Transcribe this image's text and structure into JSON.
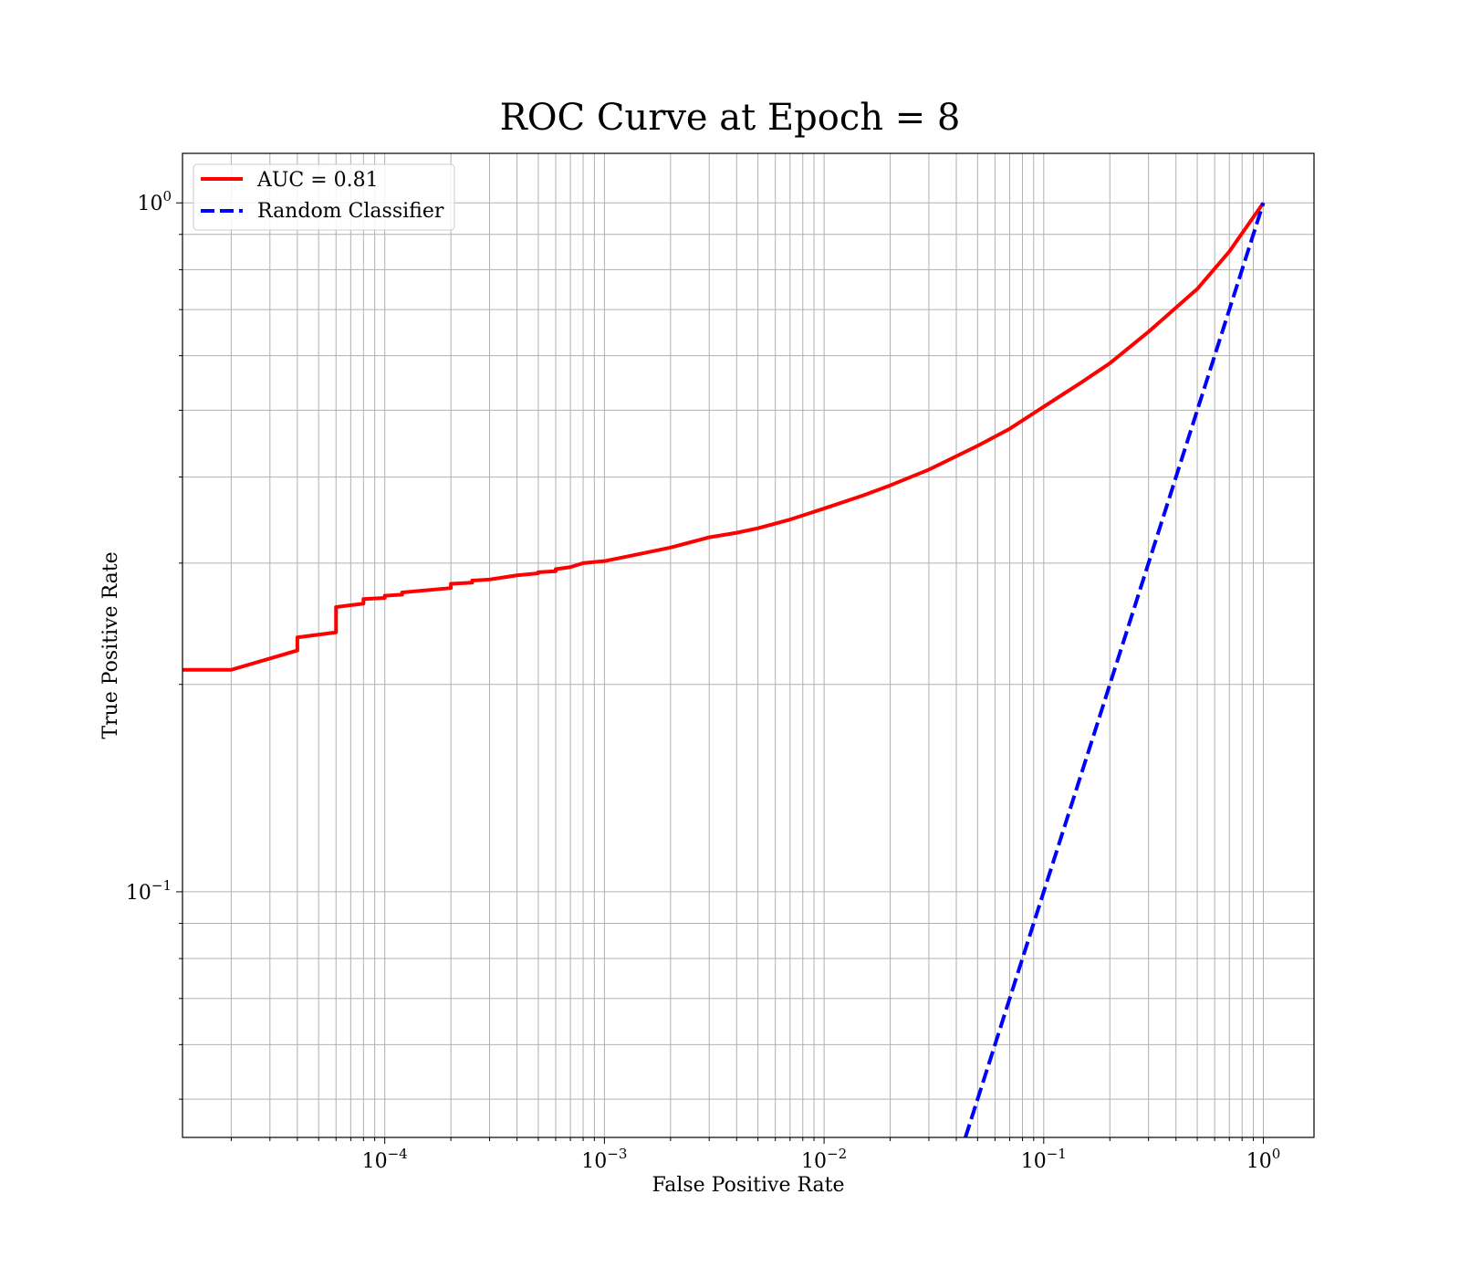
{
  "chart_data": {
    "type": "line",
    "title": "ROC Curve at Epoch = 8",
    "xlabel": "False Positive Rate",
    "ylabel": "True Positive Rate",
    "xscale": "log",
    "yscale": "log",
    "xlim": [
      1.2e-05,
      1.7
    ],
    "ylim": [
      0.044,
      1.18
    ],
    "grid": "both major and minor",
    "legend_placement": "top-left",
    "x_ticks": [
      {
        "value": 0.0001,
        "base": "10",
        "exp": "−4"
      },
      {
        "value": 0.001,
        "base": "10",
        "exp": "−3"
      },
      {
        "value": 0.01,
        "base": "10",
        "exp": "−2"
      },
      {
        "value": 0.1,
        "base": "10",
        "exp": "−1"
      },
      {
        "value": 1,
        "base": "10",
        "exp": "0"
      }
    ],
    "y_ticks": [
      {
        "value": 0.1,
        "base": "10",
        "exp": "−1"
      },
      {
        "value": 1,
        "base": "10",
        "exp": "0"
      }
    ],
    "series": [
      {
        "name": "AUC = 0.81",
        "color": "#ff0000",
        "style": "solid",
        "x": [
          1.2e-05,
          2e-05,
          4e-05,
          4e-05,
          6e-05,
          6e-05,
          8e-05,
          8e-05,
          0.0001,
          0.0001,
          0.00012,
          0.00012,
          0.0002,
          0.0002,
          0.00025,
          0.00025,
          0.0003,
          0.0004,
          0.0005,
          0.0005,
          0.0006,
          0.0006,
          0.0007,
          0.0008,
          0.001,
          0.0015,
          0.002,
          0.003,
          0.004,
          0.005,
          0.007,
          0.01,
          0.015,
          0.02,
          0.03,
          0.05,
          0.07,
          0.1,
          0.15,
          0.2,
          0.3,
          0.5,
          0.7,
          1.0
        ],
        "y": [
          0.21,
          0.21,
          0.224,
          0.234,
          0.238,
          0.259,
          0.262,
          0.266,
          0.267,
          0.269,
          0.27,
          0.272,
          0.276,
          0.28,
          0.281,
          0.283,
          0.284,
          0.288,
          0.29,
          0.291,
          0.292,
          0.294,
          0.296,
          0.3,
          0.302,
          0.31,
          0.316,
          0.327,
          0.332,
          0.337,
          0.347,
          0.36,
          0.376,
          0.389,
          0.41,
          0.444,
          0.47,
          0.506,
          0.55,
          0.585,
          0.65,
          0.75,
          0.85,
          1.0
        ]
      },
      {
        "name": "Random Classifier",
        "color": "#0000ff",
        "style": "dashed",
        "x": [
          0.044,
          1.0
        ],
        "y": [
          0.044,
          1.0
        ]
      }
    ]
  }
}
